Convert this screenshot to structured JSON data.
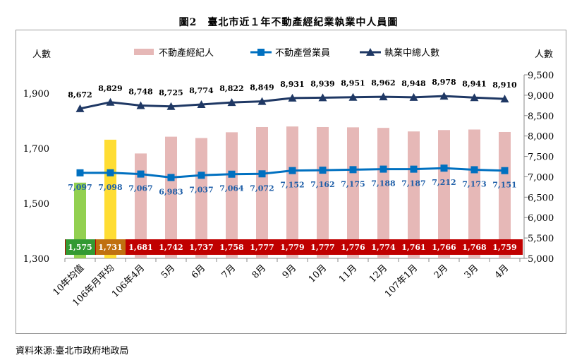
{
  "title": "圖2　臺北市近１年不動產經紀業執業中人員圖",
  "source": "資料來源:臺北市政府地政局",
  "chart_data": {
    "type": "bar+line",
    "categories": [
      "10年均值",
      "106年月平均",
      "106年4月",
      "5月",
      "6月",
      "7月",
      "8月",
      "9月",
      "10月",
      "11月",
      "12月",
      "107年1月",
      "2月",
      "3月",
      "4月"
    ],
    "left_axis": {
      "label": "人數",
      "ticks": [
        "1,300",
        "1,500",
        "1,700",
        "1,900"
      ],
      "ylim": [
        1300,
        1900
      ]
    },
    "right_axis": {
      "label": "人數",
      "ticks": [
        "5,000",
        "5,500",
        "6,000",
        "6,500",
        "7,000",
        "7,500",
        "8,000",
        "8,500",
        "9,000",
        "9,500"
      ],
      "ylim": [
        5000,
        9500
      ]
    },
    "legend": {
      "placement": "top"
    },
    "series": [
      {
        "name": "不動產經紀人",
        "type": "bar",
        "axis": "left",
        "color": "#e6b8b7",
        "values": [
          1575,
          1731,
          1681,
          1742,
          1737,
          1758,
          1777,
          1779,
          1777,
          1776,
          1774,
          1761,
          1766,
          1768,
          1759
        ],
        "labels": [
          "1,575",
          "1,731",
          "1,681",
          "1,742",
          "1,737",
          "1,758",
          "1,777",
          "1,779",
          "1,777",
          "1,776",
          "1,774",
          "1,761",
          "1,766",
          "1,768",
          "1,759"
        ],
        "special_colors": [
          "#92d050",
          "#ffdd33"
        ]
      },
      {
        "name": "不動產營業員",
        "type": "line",
        "axis": "right",
        "color": "#0070c0",
        "marker": "square",
        "values": [
          7097,
          7098,
          7067,
          6983,
          7037,
          7064,
          7072,
          7152,
          7162,
          7175,
          7188,
          7187,
          7212,
          7173,
          7151
        ],
        "labels": [
          "7,097",
          "7,098",
          "7,067",
          "6,983",
          "7,037",
          "7,064",
          "7,072",
          "7,152",
          "7,162",
          "7,175",
          "7,188",
          "7,187",
          "7,212",
          "7,173",
          "7,151"
        ]
      },
      {
        "name": "執業中總人數",
        "type": "line",
        "axis": "right",
        "color": "#1f3864",
        "marker": "triangle",
        "values": [
          8672,
          8829,
          8748,
          8725,
          8774,
          8822,
          8849,
          8931,
          8939,
          8951,
          8962,
          8948,
          8978,
          8941,
          8910
        ],
        "labels": [
          "8,672",
          "8,829",
          "8,748",
          "8,725",
          "8,774",
          "8,822",
          "8,849",
          "8,931",
          "8,939",
          "8,951",
          "8,962",
          "8,948",
          "8,978",
          "8,941",
          "8,910"
        ]
      }
    ],
    "colors": {
      "label_band": "#c00000",
      "band_first": "#339933",
      "band_second": "#c07010",
      "salesperson_label": "#1f5fa8"
    }
  }
}
